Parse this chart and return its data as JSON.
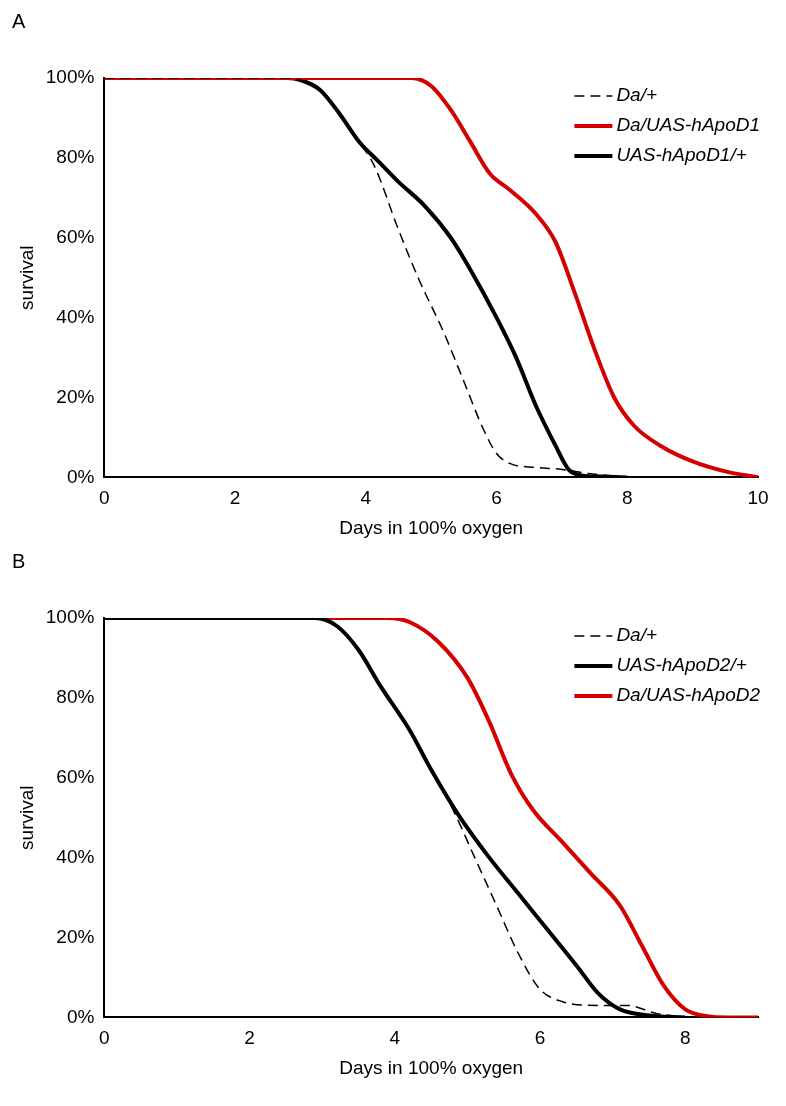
{
  "chart_data": [
    {
      "type": "line",
      "title": "A",
      "xlabel": "Days in 100% oxygen",
      "ylabel": "survival",
      "xlim": [
        0,
        10
      ],
      "xticks": [
        0,
        2,
        4,
        6,
        8,
        10
      ],
      "ylim": [
        0,
        100
      ],
      "yticks": [
        {
          "value": 0,
          "label": "0%"
        },
        {
          "value": 20,
          "label": "20%"
        },
        {
          "value": 40,
          "label": "40%"
        },
        {
          "value": 60,
          "label": "60%"
        },
        {
          "value": 80,
          "label": "80%"
        },
        {
          "value": 100,
          "label": "100%"
        }
      ],
      "grid": false,
      "legend": "top right",
      "marker": "none",
      "series": [
        {
          "name": "Da/+",
          "color": "#000000",
          "line_style": "dashed",
          "x": [
            0,
            2.8,
            3,
            3.3,
            3.6,
            3.9,
            4.13,
            4.5,
            4.8,
            5.2,
            5.5,
            5.8,
            6,
            6.2,
            6.6,
            7,
            7.4,
            8
          ],
          "values": [
            100,
            100,
            99.5,
            97,
            91,
            84,
            78,
            62,
            50,
            36,
            24,
            12,
            6,
            3.5,
            2.5,
            2,
            1,
            0
          ]
        },
        {
          "name": "Da/UAS-hApoD1",
          "color": "#d40000",
          "line_style": "solid",
          "x": [
            0,
            4.4,
            4.7,
            5,
            5.3,
            5.6,
            5.9,
            6.2,
            6.6,
            6.9,
            7.2,
            7.5,
            7.8,
            8.1,
            8.5,
            9,
            9.5,
            10
          ],
          "values": [
            100,
            100,
            100,
            98,
            92,
            84,
            76,
            72,
            66,
            59,
            46,
            32,
            20,
            13,
            8,
            4,
            1.5,
            0
          ]
        },
        {
          "name": "UAS-hApoD1/+",
          "color": "#000000",
          "line_style": "solid",
          "x": [
            0,
            2.8,
            3,
            3.3,
            3.6,
            3.9,
            4.2,
            4.5,
            4.9,
            5.3,
            5.6,
            6,
            6.3,
            6.6,
            6.9,
            7.1,
            7.3,
            7.6,
            8
          ],
          "values": [
            100,
            100,
            99.5,
            97,
            91,
            84,
            79,
            74,
            68,
            60,
            52,
            40,
            30,
            18,
            8,
            2,
            0.5,
            0.2,
            0
          ]
        }
      ]
    },
    {
      "type": "line",
      "title": "B",
      "xlabel": "Days in 100% oxygen",
      "ylabel": "survival",
      "xlim": [
        0,
        9
      ],
      "xticks": [
        0,
        2,
        4,
        6,
        8
      ],
      "ylim": [
        0,
        100
      ],
      "yticks": [
        {
          "value": 0,
          "label": "0%"
        },
        {
          "value": 20,
          "label": "20%"
        },
        {
          "value": 40,
          "label": "40%"
        },
        {
          "value": 60,
          "label": "60%"
        },
        {
          "value": 80,
          "label": "80%"
        },
        {
          "value": 100,
          "label": "100%"
        }
      ],
      "grid": false,
      "legend": "top right",
      "marker": "none",
      "series": [
        {
          "name": "Da/+",
          "color": "#000000",
          "line_style": "dashed",
          "x": [
            0,
            2.9,
            3.2,
            3.5,
            3.8,
            4.2,
            4.5,
            4.8,
            5.1,
            5.4,
            5.7,
            6,
            6.3,
            6.8,
            7.2,
            7.6,
            8
          ],
          "values": [
            100,
            100,
            98,
            92,
            83,
            72,
            62,
            52,
            40,
            28,
            16,
            7,
            4,
            3,
            3,
            1,
            0
          ]
        },
        {
          "name": "UAS-hApoD2/+",
          "color": "#000000",
          "line_style": "solid",
          "x": [
            0,
            2.9,
            3.2,
            3.5,
            3.8,
            4.2,
            4.5,
            4.9,
            5.3,
            5.7,
            6.1,
            6.5,
            6.8,
            7.1,
            7.5,
            8
          ],
          "values": [
            100,
            100,
            98,
            92,
            83,
            72,
            62,
            50,
            40,
            31,
            22,
            13,
            6,
            2,
            0.5,
            0
          ]
        },
        {
          "name": "Da/UAS-hApoD2",
          "color": "#d40000",
          "line_style": "solid",
          "x": [
            0,
            3.6,
            3.9,
            4.2,
            4.6,
            5,
            5.3,
            5.6,
            5.9,
            6.3,
            6.7,
            7.1,
            7.4,
            7.7,
            8,
            8.3,
            8.6,
            9
          ],
          "values": [
            100,
            100,
            100,
            99,
            94,
            85,
            74,
            61,
            52,
            44,
            36,
            28,
            18,
            8,
            2,
            0.3,
            0,
            0
          ]
        }
      ]
    }
  ]
}
